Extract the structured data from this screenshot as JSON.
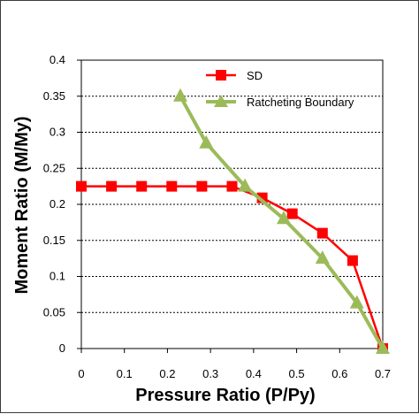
{
  "chart_data": {
    "type": "line",
    "xlabel": "Pressure Ratio (P/Py)",
    "ylabel": "Moment  Ratio (M/My)",
    "xlim": [
      0,
      0.7
    ],
    "ylim": [
      0,
      0.4
    ],
    "x_ticks": [
      "0",
      "0.1",
      "0.2",
      "0.3",
      "0.4",
      "0.5",
      "0.6",
      "0.7"
    ],
    "y_ticks": [
      "0",
      "0.05",
      "0.1",
      "0.15",
      "0.2",
      "0.25",
      "0.3",
      "0.35",
      "0.4"
    ],
    "grid": "horizontal dashed",
    "legend_position": "top-right",
    "series": [
      {
        "name": "SD",
        "color": "#ff0000",
        "marker": "square",
        "x": [
          0,
          0.07,
          0.14,
          0.21,
          0.28,
          0.35,
          0.42,
          0.49,
          0.56,
          0.63,
          0.7
        ],
        "y": [
          0.225,
          0.225,
          0.225,
          0.225,
          0.225,
          0.225,
          0.209,
          0.187,
          0.16,
          0.122,
          0
        ]
      },
      {
        "name": "Ratcheting Boundary",
        "color": "#9bbb59",
        "marker": "triangle",
        "x": [
          0.23,
          0.29,
          0.38,
          0.47,
          0.56,
          0.64,
          0.7
        ],
        "y": [
          0.35,
          0.285,
          0.225,
          0.18,
          0.125,
          0.063,
          0
        ]
      }
    ]
  }
}
